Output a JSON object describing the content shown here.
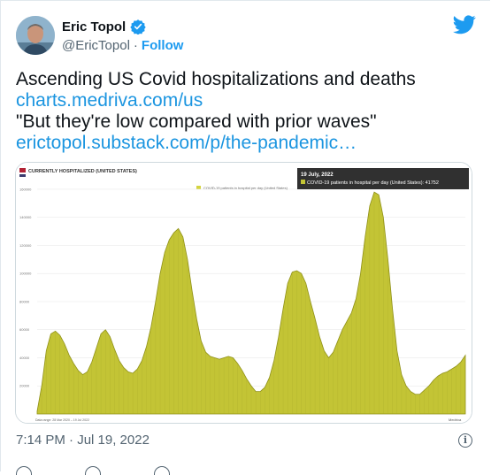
{
  "tweet": {
    "author_name": "Eric Topol",
    "handle": "@EricTopol",
    "separator": "·",
    "follow_label": "Follow",
    "lines": [
      "Ascending US Covid hospitalizations and deaths",
      "charts.medriva.com/us",
      "\"But they're low compared with prior waves\"",
      "erictopol.substack.com/p/the-pandemic…"
    ],
    "timestamp": "7:14 PM · Jul 19, 2022",
    "info_glyph": "i",
    "colors": {
      "link": "#1b95e0",
      "follow": "#1d9bf0",
      "verified": "#1d9bf0",
      "text": "#0f1419",
      "muted": "#536471"
    }
  },
  "chart_data": {
    "type": "area",
    "title": "CURRENTLY HOSPITALIZED (UNITED STATES)",
    "legend": "COVID-19 patients in hospital per day (United States)",
    "tooltip_date": "19 July, 2022",
    "tooltip_series": "COVID-19 patients in hospital per day (United States): 41752",
    "footer_left": "Data range: 28 Mar 2020 – 19 Jul 2022",
    "brand": "Medriva",
    "y_ticks": [
      "160000",
      "140000",
      "120000",
      "100000",
      "80000",
      "60000",
      "40000",
      "20000"
    ],
    "ylim": [
      0,
      165000
    ],
    "x_range": [
      "28 Mar 2020",
      "19 Jul 2022"
    ],
    "fill_color": "#c3c435",
    "stroke_color": "#8f9018",
    "grid": true,
    "legend_placement": "top-center",
    "values": [
      2000,
      20000,
      45000,
      57000,
      59000,
      56000,
      50000,
      42000,
      36000,
      31000,
      28000,
      30000,
      37000,
      47000,
      57000,
      60000,
      55000,
      46000,
      38000,
      33000,
      30000,
      29000,
      32000,
      38000,
      48000,
      62000,
      80000,
      100000,
      115000,
      124000,
      129000,
      132000,
      126000,
      110000,
      88000,
      68000,
      52000,
      44000,
      41000,
      40000,
      39000,
      40000,
      41000,
      40000,
      36000,
      31000,
      25000,
      20000,
      16000,
      16000,
      19000,
      26000,
      38000,
      55000,
      75000,
      93000,
      101000,
      102000,
      100000,
      93000,
      80000,
      68000,
      55000,
      45000,
      40000,
      44000,
      52000,
      60000,
      66000,
      72000,
      82000,
      100000,
      126000,
      148000,
      158000,
      156000,
      140000,
      110000,
      75000,
      45000,
      28000,
      20000,
      16000,
      14000,
      14000,
      17000,
      20000,
      24000,
      27000,
      29000,
      30000,
      32000,
      34000,
      37000,
      41752
    ]
  }
}
